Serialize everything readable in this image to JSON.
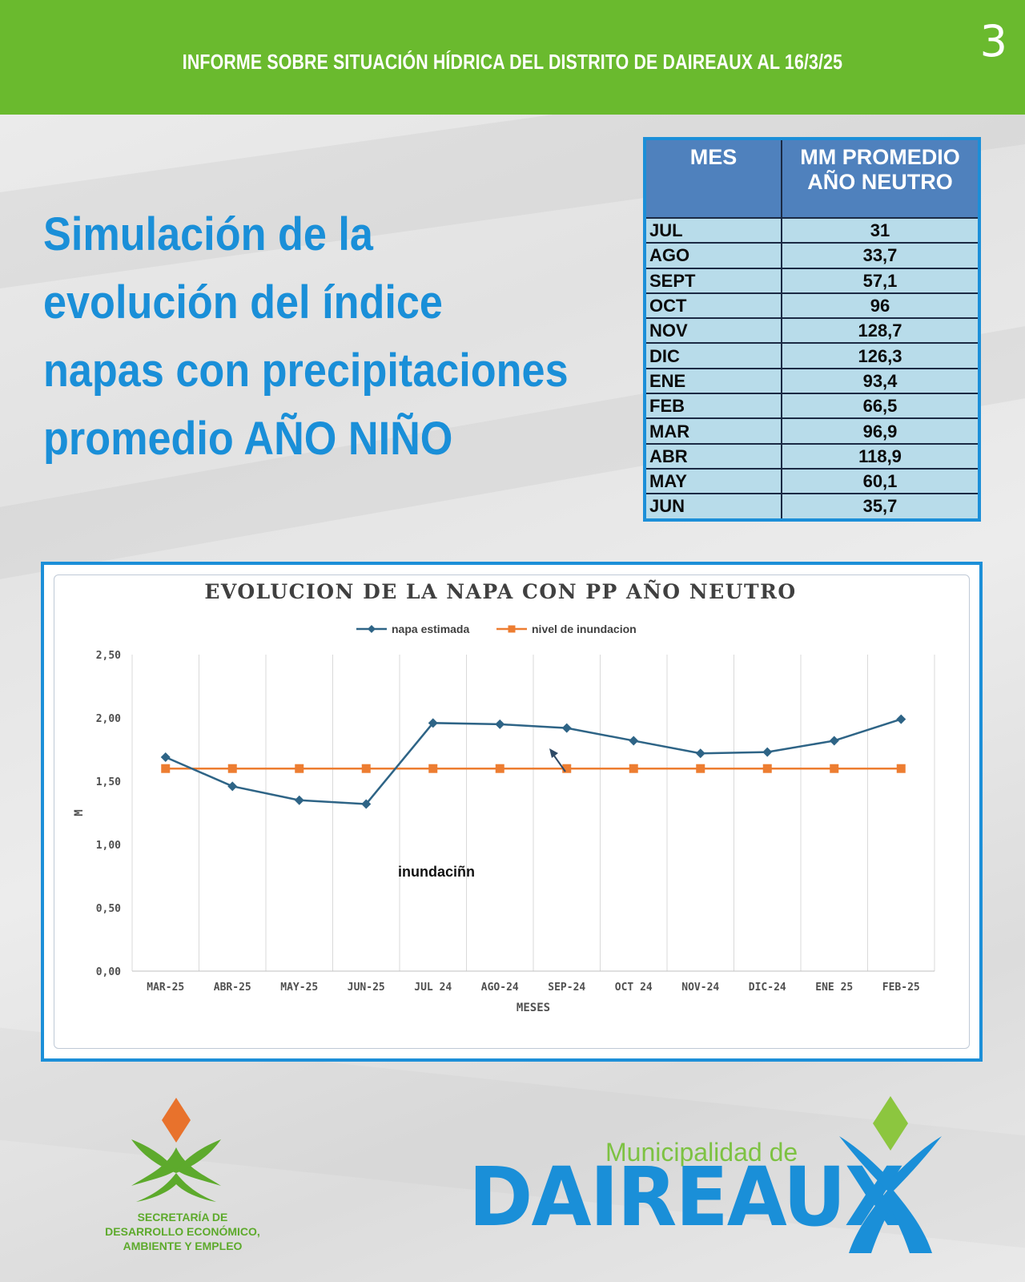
{
  "header": {
    "title": "INFORME SOBRE SITUACIÓN HÍDRICA DEL DISTRITO DE DAIREAUX AL 16/3/25",
    "page_number": "3"
  },
  "headline": {
    "lines": [
      "Simulación de la",
      "evolución del índice",
      "napas con precipitaciones",
      "promedio AÑO NIÑO"
    ]
  },
  "rain_table": {
    "headers": [
      "MES",
      "MM PROMEDIO AÑO NEUTRO"
    ],
    "rows": [
      [
        "JUL",
        "31"
      ],
      [
        "AGO",
        "33,7"
      ],
      [
        "SEPT",
        "57,1"
      ],
      [
        "OCT",
        "96"
      ],
      [
        "NOV",
        "128,7"
      ],
      [
        "DIC",
        "126,3"
      ],
      [
        "ENE",
        "93,4"
      ],
      [
        "FEB",
        "66,5"
      ],
      [
        "MAR",
        "96,9"
      ],
      [
        "ABR",
        "118,9"
      ],
      [
        "MAY",
        "60,1"
      ],
      [
        "JUN",
        "35,7"
      ]
    ]
  },
  "chart_data": {
    "type": "line",
    "title": "EVOLUCION DE LA NAPA CON PP AÑO NEUTRO",
    "xlabel": "MESES",
    "ylabel": "M",
    "ylim": [
      0,
      2.5
    ],
    "yticks": [
      "0,00",
      "0,50",
      "1,00",
      "1,50",
      "2,00",
      "2,50"
    ],
    "categories": [
      "MAR-25",
      "ABR-25",
      "MAY-25",
      "JUN-25",
      "JUL 24",
      "AGO-24",
      "SEP-24",
      "OCT 24",
      "NOV-24",
      "DIC-24",
      "ENE  25",
      "FEB-25"
    ],
    "series": [
      {
        "name": "napa estimada",
        "color": "#2e6486",
        "marker": "diamond",
        "values": [
          1.69,
          1.46,
          1.35,
          1.32,
          1.96,
          1.95,
          1.92,
          1.82,
          1.72,
          1.73,
          1.82,
          1.99
        ]
      },
      {
        "name": "nivel de inundacion",
        "color": "#ed7d31",
        "marker": "square",
        "values": [
          1.6,
          1.6,
          1.6,
          1.6,
          1.6,
          1.6,
          1.6,
          1.6,
          1.6,
          1.6,
          1.6,
          1.6
        ]
      }
    ],
    "annotation": "inundaciñn",
    "grid": "vertical",
    "legend": "top-center"
  },
  "logos": {
    "secretaria": [
      "SECRETARÍA DE",
      "DESARROLLO ECONÓMICO,",
      "AMBIENTE Y EMPLEO"
    ],
    "municipalidad_caption": "Municipalidad de",
    "municipalidad_name": "DAIREAUX",
    "colors": {
      "orange": "#e8722c",
      "green": "#5daa2c",
      "blue": "#1a8fd8",
      "lightgreen": "#8cc63f"
    }
  }
}
